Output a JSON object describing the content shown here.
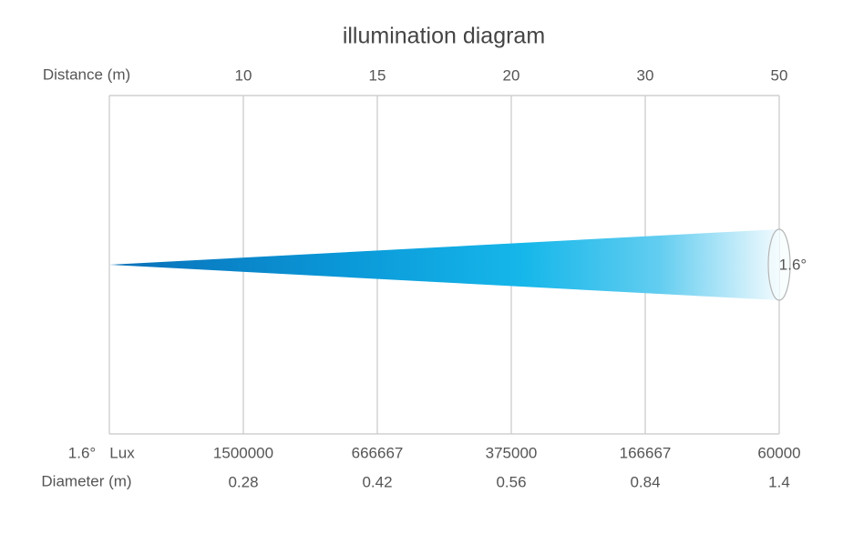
{
  "title": "illumination diagram",
  "distance_label": "Distance (m)",
  "distances": [
    "10",
    "15",
    "20",
    "30",
    "50"
  ],
  "beam_angle": "1.6°",
  "lux_label": "Lux",
  "lux": [
    "1500000",
    "666667",
    "375000",
    "166667",
    "60000"
  ],
  "diameter_label": "Diameter (m)",
  "diameters": [
    "0.28",
    "0.42",
    "0.56",
    "0.84",
    "1.4"
  ]
}
